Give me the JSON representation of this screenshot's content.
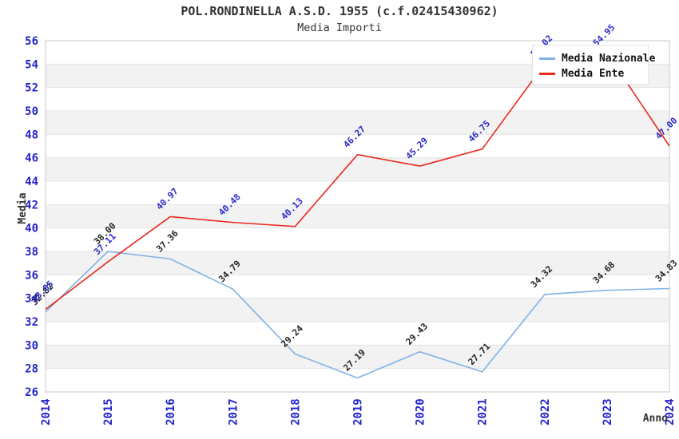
{
  "chart_data": {
    "type": "line",
    "title": "POL.RONDINELLA A.S.D. 1955 (c.f.02415430962)",
    "subtitle": "Media Importi",
    "xlabel": "Anno",
    "ylabel": "Media",
    "x": [
      "2014",
      "2015",
      "2016",
      "2017",
      "2018",
      "2019",
      "2020",
      "2021",
      "2022",
      "2023",
      "2024"
    ],
    "ylim": [
      26,
      56
    ],
    "ytick_step": 2,
    "grid": "horizontal-bands",
    "legend_position": "top-right",
    "series": [
      {
        "name": "Media Nazionale",
        "color": "#7fb2e5",
        "label_color": "#222222",
        "values": [
          32.82,
          38.0,
          37.36,
          34.79,
          29.24,
          27.19,
          29.43,
          27.71,
          34.32,
          34.68,
          34.83
        ]
      },
      {
        "name": "Media Ente",
        "color": "#e8291d",
        "label_color": "#2a2ac9",
        "values": [
          33.05,
          37.11,
          40.97,
          40.48,
          40.13,
          46.27,
          45.29,
          46.75,
          54.02,
          54.95,
          47.0
        ]
      }
    ],
    "colors": {
      "tick_label": "#2323cb",
      "band_gray": "#f2f2f2",
      "gridline": "#e4e4e4",
      "plot_border": "#c9c9c9",
      "axis_title": "#333333"
    }
  }
}
